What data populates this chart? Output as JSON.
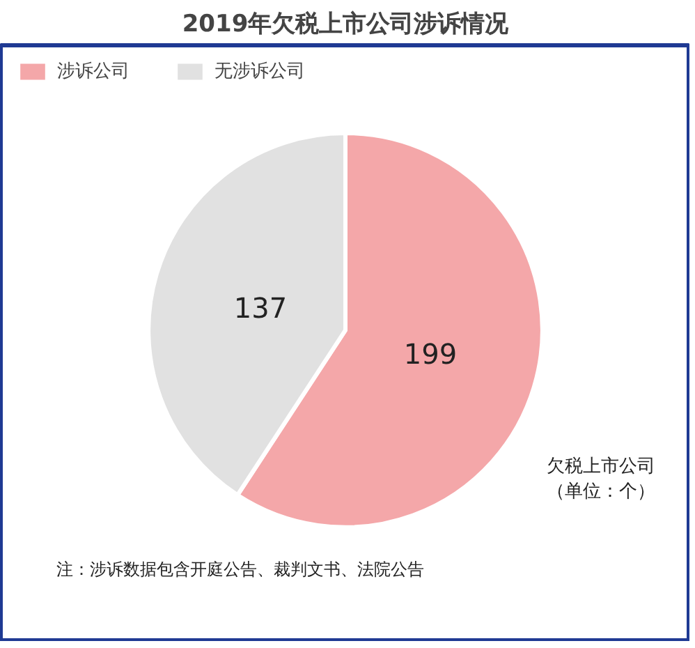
{
  "chart_data": {
    "type": "pie",
    "title": "2019年欠税上市公司涉诉情况",
    "categories": [
      "涉诉公司",
      "无涉诉公司"
    ],
    "values": [
      199,
      137
    ],
    "colors": [
      "#f4a7a9",
      "#e1e1e1"
    ],
    "data_labels": true,
    "legend": "top left",
    "annotations": [
      "欠税上市公司",
      "（单位：个）",
      "注：涉诉数据包含开庭公告、裁判文书、法院公告"
    ]
  }
}
